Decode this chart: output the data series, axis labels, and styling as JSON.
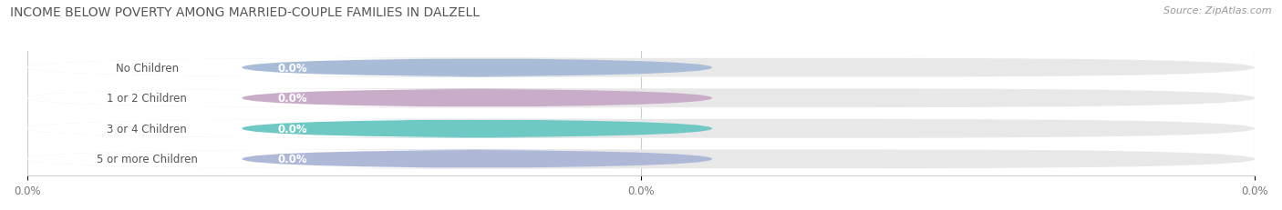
{
  "title": "INCOME BELOW POVERTY AMONG MARRIED-COUPLE FAMILIES IN DALZELL",
  "source": "Source: ZipAtlas.com",
  "categories": [
    "No Children",
    "1 or 2 Children",
    "3 or 4 Children",
    "5 or more Children"
  ],
  "values": [
    0.0,
    0.0,
    0.0,
    0.0
  ],
  "bar_colors": [
    "#a8bcd8",
    "#c9adc8",
    "#6ec9c4",
    "#b0b8d8"
  ],
  "bar_bg_color": "#e8e8e8",
  "white_section_color": "#ffffff",
  "value_label_color": "#ffffff",
  "cat_label_color": "#555555",
  "title_color": "#555555",
  "source_color": "#999999",
  "background_color": "#ffffff",
  "figsize": [
    14.06,
    2.32
  ],
  "dpi": 100,
  "xtick_positions": [
    0.0,
    0.5,
    1.0
  ],
  "xtick_labels": [
    "0.0%",
    "0.0%",
    "0.0%"
  ]
}
